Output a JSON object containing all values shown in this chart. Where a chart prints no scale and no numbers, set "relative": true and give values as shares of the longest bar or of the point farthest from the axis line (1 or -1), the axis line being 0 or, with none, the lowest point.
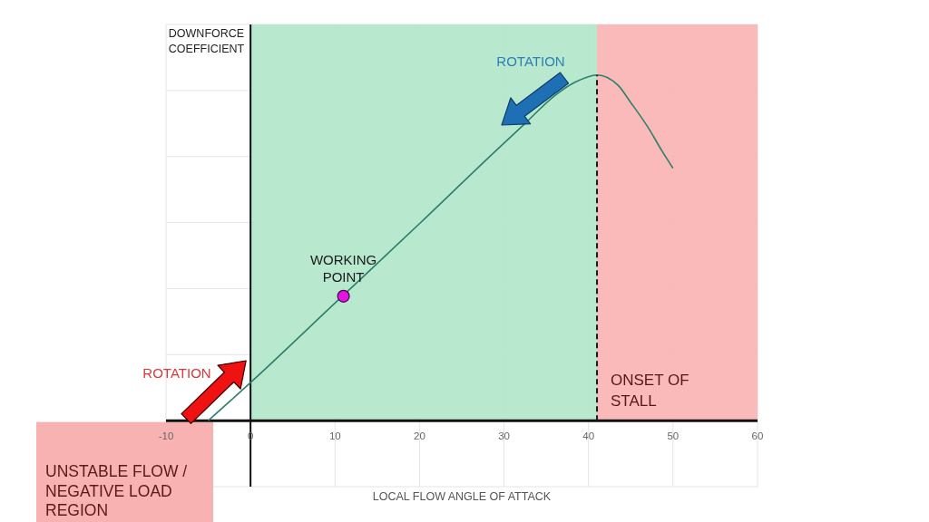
{
  "chart_data": {
    "type": "line",
    "xlabel": "LOCAL FLOW ANGLE OF ATTACK",
    "ylabel": "DOWNFORCE COEFFICIENT",
    "relative": true,
    "xlim": [
      -10,
      60
    ],
    "xticks": [
      -10,
      0,
      10,
      20,
      30,
      40,
      50,
      60
    ],
    "grid": true,
    "series": [
      {
        "type": "line",
        "color": "#2b7f6c",
        "x": [
          -5,
          0,
          10,
          20,
          29,
          32.5,
          36,
          38.5,
          41,
          43.5,
          45,
          47,
          48.7,
          50
        ],
        "values": [
          0,
          0.11,
          0.34,
          0.57,
          0.78,
          0.86,
          0.94,
          0.98,
          1,
          0.97,
          0.92,
          0.85,
          0.78,
          0.73
        ]
      },
      {
        "type": "scatter",
        "name": "WORKING POINT",
        "color": "#e414e4",
        "marker": "circle",
        "x": [
          11
        ],
        "values": [
          0.36
        ]
      }
    ],
    "ref_lines": [
      {
        "axis": "x",
        "value": 41,
        "label": "ONSET OF STALL",
        "color": "#1a1a1a",
        "line_style": "dashed"
      }
    ],
    "bands": [
      {
        "axis": "x",
        "from": 0,
        "to": 41,
        "color": "#b0e6c9"
      },
      {
        "axis": "x",
        "from": 41,
        "to": 60,
        "color": "#f9b2b2"
      }
    ],
    "annotations": [
      "ROTATION",
      "ROTATION",
      "UNSTABLE FLOW / NEGATIVE LOAD REGION"
    ]
  }
}
